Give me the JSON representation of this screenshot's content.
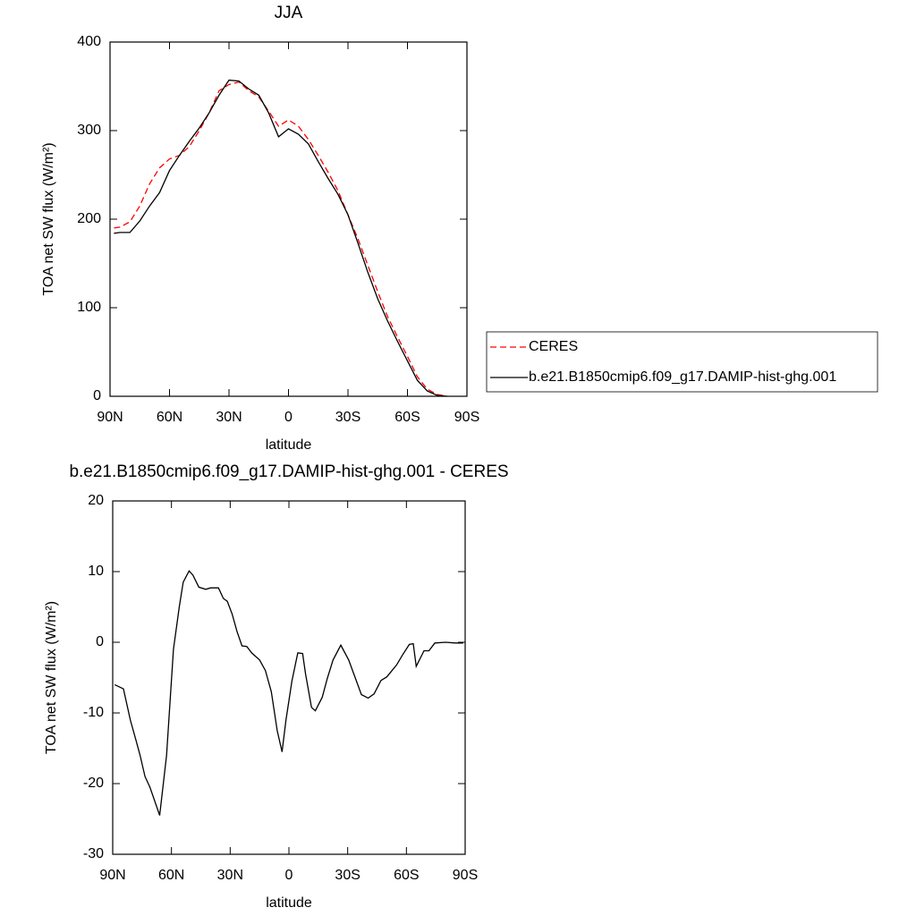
{
  "chart_data": [
    {
      "type": "line",
      "title": "JJA",
      "xlabel": "latitude",
      "ylabel": "TOA net SW flux (W/m²)",
      "x": [
        88,
        85,
        80,
        75,
        70,
        65,
        60,
        55,
        50,
        45,
        40,
        35,
        30,
        25,
        20,
        15,
        10,
        5,
        0,
        -5,
        -10,
        -15,
        -20,
        -25,
        -30,
        -35,
        -40,
        -45,
        -50,
        -55,
        -60,
        -65,
        -70,
        -75,
        -80
      ],
      "series": [
        {
          "name": "CERES",
          "color": "#ff0000",
          "dashed": true,
          "values": [
            190,
            191,
            197,
            215,
            240,
            258,
            268,
            272,
            282,
            300,
            320,
            345,
            352,
            355,
            345,
            338,
            322,
            305,
            312,
            305,
            290,
            272,
            253,
            232,
            205,
            178,
            148,
            118,
            90,
            67,
            45,
            22,
            8,
            2,
            0
          ]
        },
        {
          "name": "b.e21.B1850cmip6.f09_g17.DAMIP-hist-ghg.001",
          "color": "#000000",
          "dashed": false,
          "values": [
            184,
            185,
            185,
            198,
            215,
            230,
            255,
            272,
            288,
            303,
            320,
            340,
            357,
            356,
            347,
            340,
            320,
            293,
            302,
            296,
            285,
            265,
            246,
            228,
            205,
            173,
            140,
            110,
            85,
            62,
            40,
            18,
            6,
            1,
            0
          ]
        }
      ],
      "xlim": [
        90,
        -90
      ],
      "xticks": [
        {
          "value": 90,
          "label": "90N"
        },
        {
          "value": 60,
          "label": "60N"
        },
        {
          "value": 30,
          "label": "30N"
        },
        0,
        {
          "value": -30,
          "label": "30S"
        },
        {
          "value": -60,
          "label": "60S"
        },
        {
          "value": -90,
          "label": "90S"
        }
      ],
      "ylim": [
        0,
        400
      ],
      "yticks": [
        0,
        100,
        200,
        300,
        400
      ],
      "legend": "right"
    },
    {
      "type": "line",
      "title": "b.e21.B1850cmip6.f09_g17.DAMIP-hist-ghg.001 - CERES",
      "xlabel": "latitude",
      "ylabel": "TOA net SW flux (W/m²)",
      "x": [
        89,
        84.5,
        81,
        78,
        76,
        73.5,
        71,
        66,
        62.5,
        59,
        56,
        54,
        51,
        49,
        46,
        42.5,
        40,
        36,
        33.5,
        31.5,
        29,
        26.5,
        24,
        21.5,
        19,
        15,
        12,
        9,
        6,
        3.5,
        1.5,
        -1.5,
        -4.5,
        -7,
        -8.5,
        -11.5,
        -13.5,
        -17,
        -19.5,
        -22.5,
        -26.5,
        -30.5,
        -34.5,
        -37,
        -40.5,
        -43.5,
        -47,
        -50,
        -55,
        -58,
        -61.5,
        -63.5,
        -65,
        -69,
        -71.5,
        -74.5,
        -80,
        -85,
        -89
      ],
      "values": [
        -6,
        -6.6,
        -11,
        -14,
        -16,
        -19,
        -20.5,
        -24.5,
        -16,
        -1,
        5,
        8.5,
        10.1,
        9.5,
        7.8,
        7.5,
        7.7,
        7.7,
        6.2,
        5.8,
        4,
        1.5,
        -0.5,
        -0.6,
        -1.5,
        -2.5,
        -4,
        -7,
        -12.5,
        -15.5,
        -11,
        -5.5,
        -1.5,
        -1.6,
        -4.5,
        -9.2,
        -9.7,
        -7.8,
        -5.2,
        -2.5,
        -0.4,
        -2.5,
        -5.5,
        -7.4,
        -7.9,
        -7.3,
        -5.4,
        -4.9,
        -3.2,
        -1.8,
        -0.3,
        -0.2,
        -3.4,
        -1.2,
        -1.2,
        -0.1,
        0,
        -0.1,
        -0.1
      ],
      "color": "#000000",
      "xlim": [
        90,
        -90
      ],
      "xticks": [
        {
          "value": 90,
          "label": "90N"
        },
        {
          "value": 60,
          "label": "60N"
        },
        {
          "value": 30,
          "label": "30N"
        },
        0,
        {
          "value": -30,
          "label": "30S"
        },
        {
          "value": -60,
          "label": "60S"
        },
        {
          "value": -90,
          "label": "90S"
        }
      ],
      "ylim": [
        -30,
        20
      ],
      "yticks": [
        -30,
        -20,
        -10,
        0,
        10,
        20
      ]
    }
  ]
}
